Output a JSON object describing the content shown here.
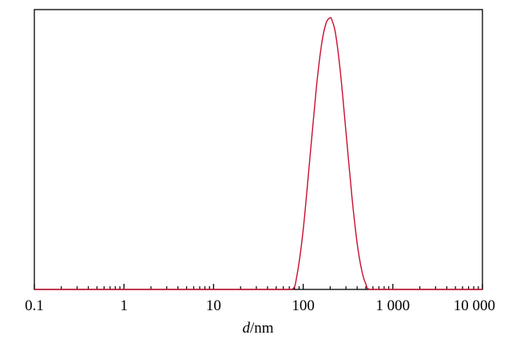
{
  "chart_data": {
    "type": "line",
    "title": "",
    "xlabel": {
      "var": "d",
      "unit": "/nm"
    },
    "ylabel": "",
    "x_scale": "log",
    "xlim": [
      0.1,
      10000
    ],
    "ylim": [
      0,
      1.03
    ],
    "x_ticks": [
      {
        "value": 0.1,
        "label": "0.1"
      },
      {
        "value": 1,
        "label": "1"
      },
      {
        "value": 10,
        "label": "10"
      },
      {
        "value": 100,
        "label": "100"
      },
      {
        "value": 1000,
        "label": "1 000"
      },
      {
        "value": 10000,
        "label": "10 000"
      }
    ],
    "grid": false,
    "line_color": "#c8102e",
    "series": [
      {
        "x": [
          0.1,
          1,
          10,
          50,
          75,
          85,
          100,
          120,
          140,
          160,
          180,
          200,
          210,
          230,
          260,
          300,
          350,
          400,
          450,
          500,
          560,
          1000,
          10000
        ],
        "y": [
          0,
          0,
          0,
          0,
          0,
          0.05,
          0.22,
          0.5,
          0.74,
          0.9,
          0.98,
          1.0,
          0.99,
          0.94,
          0.8,
          0.58,
          0.34,
          0.17,
          0.07,
          0.02,
          0,
          0,
          0
        ]
      }
    ]
  }
}
